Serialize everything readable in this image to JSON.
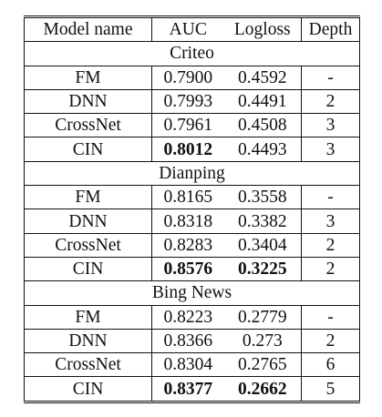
{
  "table": {
    "columns": [
      "Model name",
      "AUC",
      "Logloss",
      "Depth"
    ],
    "sections": [
      {
        "name": "Criteo",
        "rows": [
          {
            "model": "FM",
            "auc": "0.7900",
            "logloss": "0.4592",
            "depth": "-",
            "auc_bold": false,
            "logloss_bold": false
          },
          {
            "model": "DNN",
            "auc": "0.7993",
            "logloss": "0.4491",
            "depth": "2",
            "auc_bold": false,
            "logloss_bold": false
          },
          {
            "model": "CrossNet",
            "auc": "0.7961",
            "logloss": "0.4508",
            "depth": "3",
            "auc_bold": false,
            "logloss_bold": false
          },
          {
            "model": "CIN",
            "auc": "0.8012",
            "logloss": "0.4493",
            "depth": "3",
            "auc_bold": true,
            "logloss_bold": false
          }
        ]
      },
      {
        "name": "Dianping",
        "rows": [
          {
            "model": "FM",
            "auc": "0.8165",
            "logloss": "0.3558",
            "depth": "-",
            "auc_bold": false,
            "logloss_bold": false
          },
          {
            "model": "DNN",
            "auc": "0.8318",
            "logloss": "0.3382",
            "depth": "3",
            "auc_bold": false,
            "logloss_bold": false
          },
          {
            "model": "CrossNet",
            "auc": "0.8283",
            "logloss": "0.3404",
            "depth": "2",
            "auc_bold": false,
            "logloss_bold": false
          },
          {
            "model": "CIN",
            "auc": "0.8576",
            "logloss": "0.3225",
            "depth": "2",
            "auc_bold": true,
            "logloss_bold": true
          }
        ]
      },
      {
        "name": "Bing News",
        "rows": [
          {
            "model": "FM",
            "auc": "0.8223",
            "logloss": "0.2779",
            "depth": "-",
            "auc_bold": false,
            "logloss_bold": false
          },
          {
            "model": "DNN",
            "auc": "0.8366",
            "logloss": "0.273",
            "depth": "2",
            "auc_bold": false,
            "logloss_bold": false
          },
          {
            "model": "CrossNet",
            "auc": "0.8304",
            "logloss": "0.2765",
            "depth": "6",
            "auc_bold": false,
            "logloss_bold": false
          },
          {
            "model": "CIN",
            "auc": "0.8377",
            "logloss": "0.2662",
            "depth": "5",
            "auc_bold": true,
            "logloss_bold": true
          }
        ]
      }
    ]
  }
}
